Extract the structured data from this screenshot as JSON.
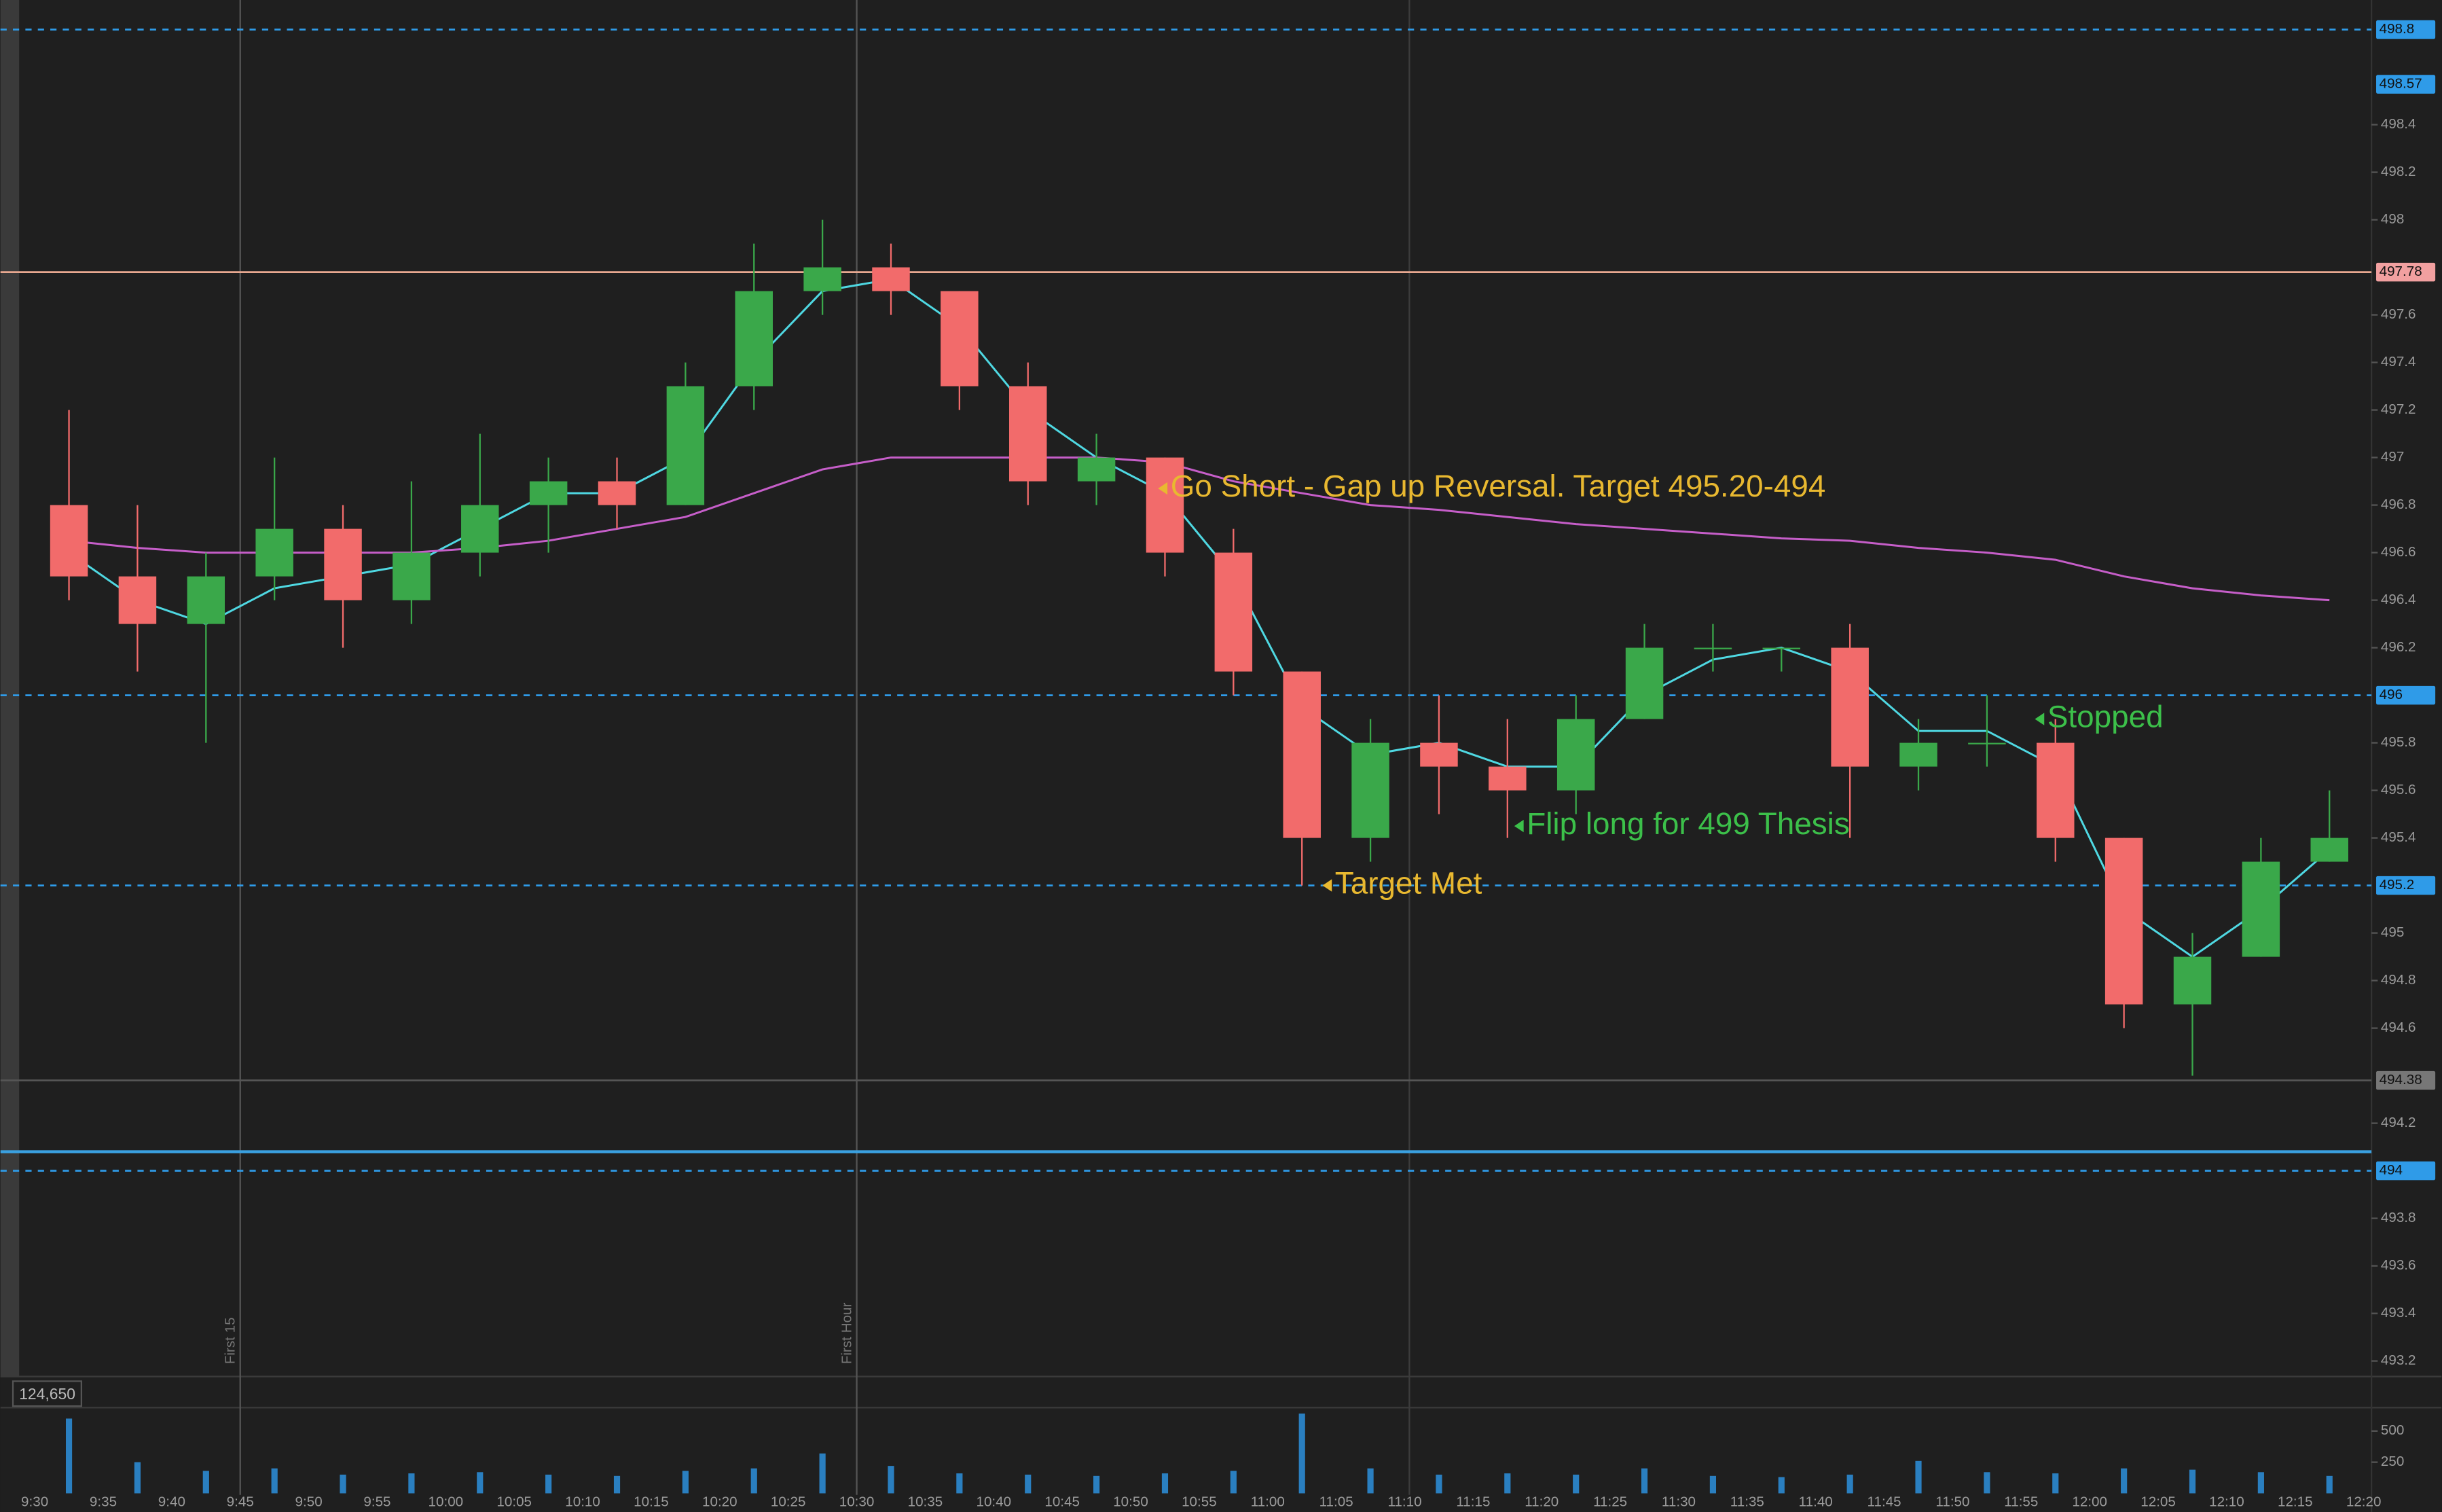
{
  "chart_data": {
    "type": "candlestick",
    "ylim": [
      493.2,
      498.8
    ],
    "yticks": [
      498.4,
      498.2,
      498,
      497.6,
      497.4,
      497.2,
      497,
      496.8,
      496.6,
      496.4,
      496.2,
      495.8,
      495.6,
      495.4,
      495,
      494.8,
      494.6,
      494.2,
      493.8,
      493.6,
      493.4,
      493.2
    ],
    "xticks": [
      "9:30",
      "9:35",
      "9:40",
      "9:45",
      "9:50",
      "9:55",
      "10:00",
      "10:05",
      "10:10",
      "10:15",
      "10:20",
      "10:25",
      "10:30",
      "10:35",
      "10:40",
      "10:45",
      "10:50",
      "10:55",
      "11:00",
      "11:05",
      "11:10",
      "11:15",
      "11:20",
      "11:25",
      "11:30",
      "11:35",
      "11:40",
      "11:45",
      "11:50",
      "11:55",
      "12:00",
      "12:05",
      "12:10",
      "12:15",
      "12:20"
    ],
    "up_color": "#3aa84a",
    "down_color": "#f26b6b",
    "open": [
      496.8,
      496.5,
      496.3,
      496.5,
      496.7,
      496.4,
      496.6,
      496.8,
      496.9,
      496.8,
      497.3,
      497.7,
      497.8,
      497.7,
      497.3,
      496.9,
      497.0,
      496.6,
      496.1,
      495.4,
      495.8,
      495.7,
      495.6,
      495.9,
      496.2,
      496.2,
      496.2,
      495.7,
      495.8,
      495.8,
      495.4,
      494.7,
      494.9,
      495.3
    ],
    "high": [
      497.2,
      496.8,
      496.6,
      497.0,
      496.8,
      496.9,
      497.1,
      497.0,
      497.0,
      497.4,
      497.9,
      498.0,
      497.9,
      497.7,
      497.4,
      497.1,
      497.0,
      496.7,
      496.1,
      495.9,
      496.0,
      495.9,
      496.0,
      496.3,
      496.3,
      496.2,
      496.3,
      495.9,
      496.0,
      495.9,
      495.4,
      495.0,
      495.4,
      495.6
    ],
    "low": [
      496.4,
      496.1,
      495.8,
      496.4,
      496.2,
      496.3,
      496.5,
      496.6,
      496.7,
      496.8,
      497.2,
      497.6,
      497.6,
      497.2,
      496.8,
      496.8,
      496.5,
      496.0,
      495.2,
      495.3,
      495.5,
      495.4,
      495.5,
      495.9,
      496.1,
      496.1,
      495.4,
      495.6,
      495.7,
      495.3,
      494.6,
      494.4,
      494.9,
      495.3
    ],
    "close": [
      496.5,
      496.3,
      496.5,
      496.7,
      496.4,
      496.6,
      496.8,
      496.9,
      496.8,
      497.3,
      497.7,
      497.8,
      497.7,
      497.3,
      496.9,
      497.0,
      496.6,
      496.1,
      495.4,
      495.8,
      495.7,
      495.6,
      495.9,
      496.2,
      496.2,
      496.2,
      495.7,
      495.8,
      495.8,
      495.4,
      494.7,
      494.9,
      495.3,
      495.4
    ],
    "series": [
      {
        "color": "#4fd8e2",
        "values": [
          496.6,
          496.4,
          496.3,
          496.45,
          496.5,
          496.55,
          496.7,
          496.85,
          496.85,
          497.0,
          497.4,
          497.7,
          497.75,
          497.55,
          497.2,
          497.0,
          496.85,
          496.5,
          495.95,
          495.75,
          495.8,
          495.7,
          495.7,
          496.0,
          496.15,
          496.2,
          496.1,
          495.85,
          495.85,
          495.7,
          495.1,
          494.9,
          495.1,
          495.35
        ]
      },
      {
        "color": "#c65ec9",
        "values": [
          496.65,
          496.62,
          496.6,
          496.6,
          496.6,
          496.6,
          496.62,
          496.65,
          496.7,
          496.75,
          496.85,
          496.95,
          497.0,
          497.0,
          497.0,
          497.0,
          496.98,
          496.9,
          496.85,
          496.8,
          496.78,
          496.75,
          496.72,
          496.7,
          496.68,
          496.66,
          496.65,
          496.62,
          496.6,
          496.57,
          496.5,
          496.45,
          496.42,
          496.4
        ]
      }
    ],
    "levels": [
      {
        "value": 498.8,
        "color": "#2f9be8",
        "badge": "#2f9be8",
        "style": "dashed"
      },
      {
        "value": 498.57,
        "color": "#2f9be8",
        "badge": "#2f9be8",
        "style": "none"
      },
      {
        "value": 497.78,
        "color": "#e8a890",
        "badge": "#f2a0a0",
        "style": "solid"
      },
      {
        "value": 496,
        "color": "#2f9be8",
        "badge": "#2f9be8",
        "style": "dashed"
      },
      {
        "value": 495.2,
        "color": "#2f9be8",
        "badge": "#2f9be8",
        "style": "dashed"
      },
      {
        "value": 494.38,
        "color": "#555555",
        "badge": "#777777",
        "style": "solid"
      },
      {
        "value": 494,
        "color": "#2f9be8",
        "badge": "#2f9be8",
        "style": "dashed"
      }
    ],
    "hline": {
      "value": 494.08,
      "color": "#3aa0e0"
    },
    "markers": [
      {
        "label": "First 15",
        "x": "9:45"
      },
      {
        "label": "First Hour",
        "x": "10:30"
      }
    ],
    "annotations": [
      {
        "text": "Go Short - Gap up Reversal.  Target 495.20-494",
        "x": "10:52",
        "y": 496.87,
        "color": "#e8b830"
      },
      {
        "text": "Target Met",
        "x": "11:04",
        "y": 495.2,
        "color": "#e8b830"
      },
      {
        "text": "Flip long for 499 Thesis",
        "x": "11:18",
        "y": 495.45,
        "color": "#3cc04a"
      },
      {
        "text": "Stopped",
        "x": "11:56",
        "y": 495.9,
        "color": "#3cc04a"
      }
    ],
    "volume": {
      "readout": "124,650",
      "color": "#2a7fc0",
      "ylim": [
        0,
        675
      ],
      "yticks": [
        500,
        250
      ],
      "values": [
        600,
        250,
        180,
        200,
        150,
        160,
        170,
        150,
        140,
        180,
        200,
        320,
        220,
        160,
        150,
        140,
        160,
        180,
        640,
        200,
        150,
        160,
        150,
        200,
        140,
        130,
        150,
        260,
        170,
        160,
        200,
        190,
        170,
        140
      ]
    }
  }
}
